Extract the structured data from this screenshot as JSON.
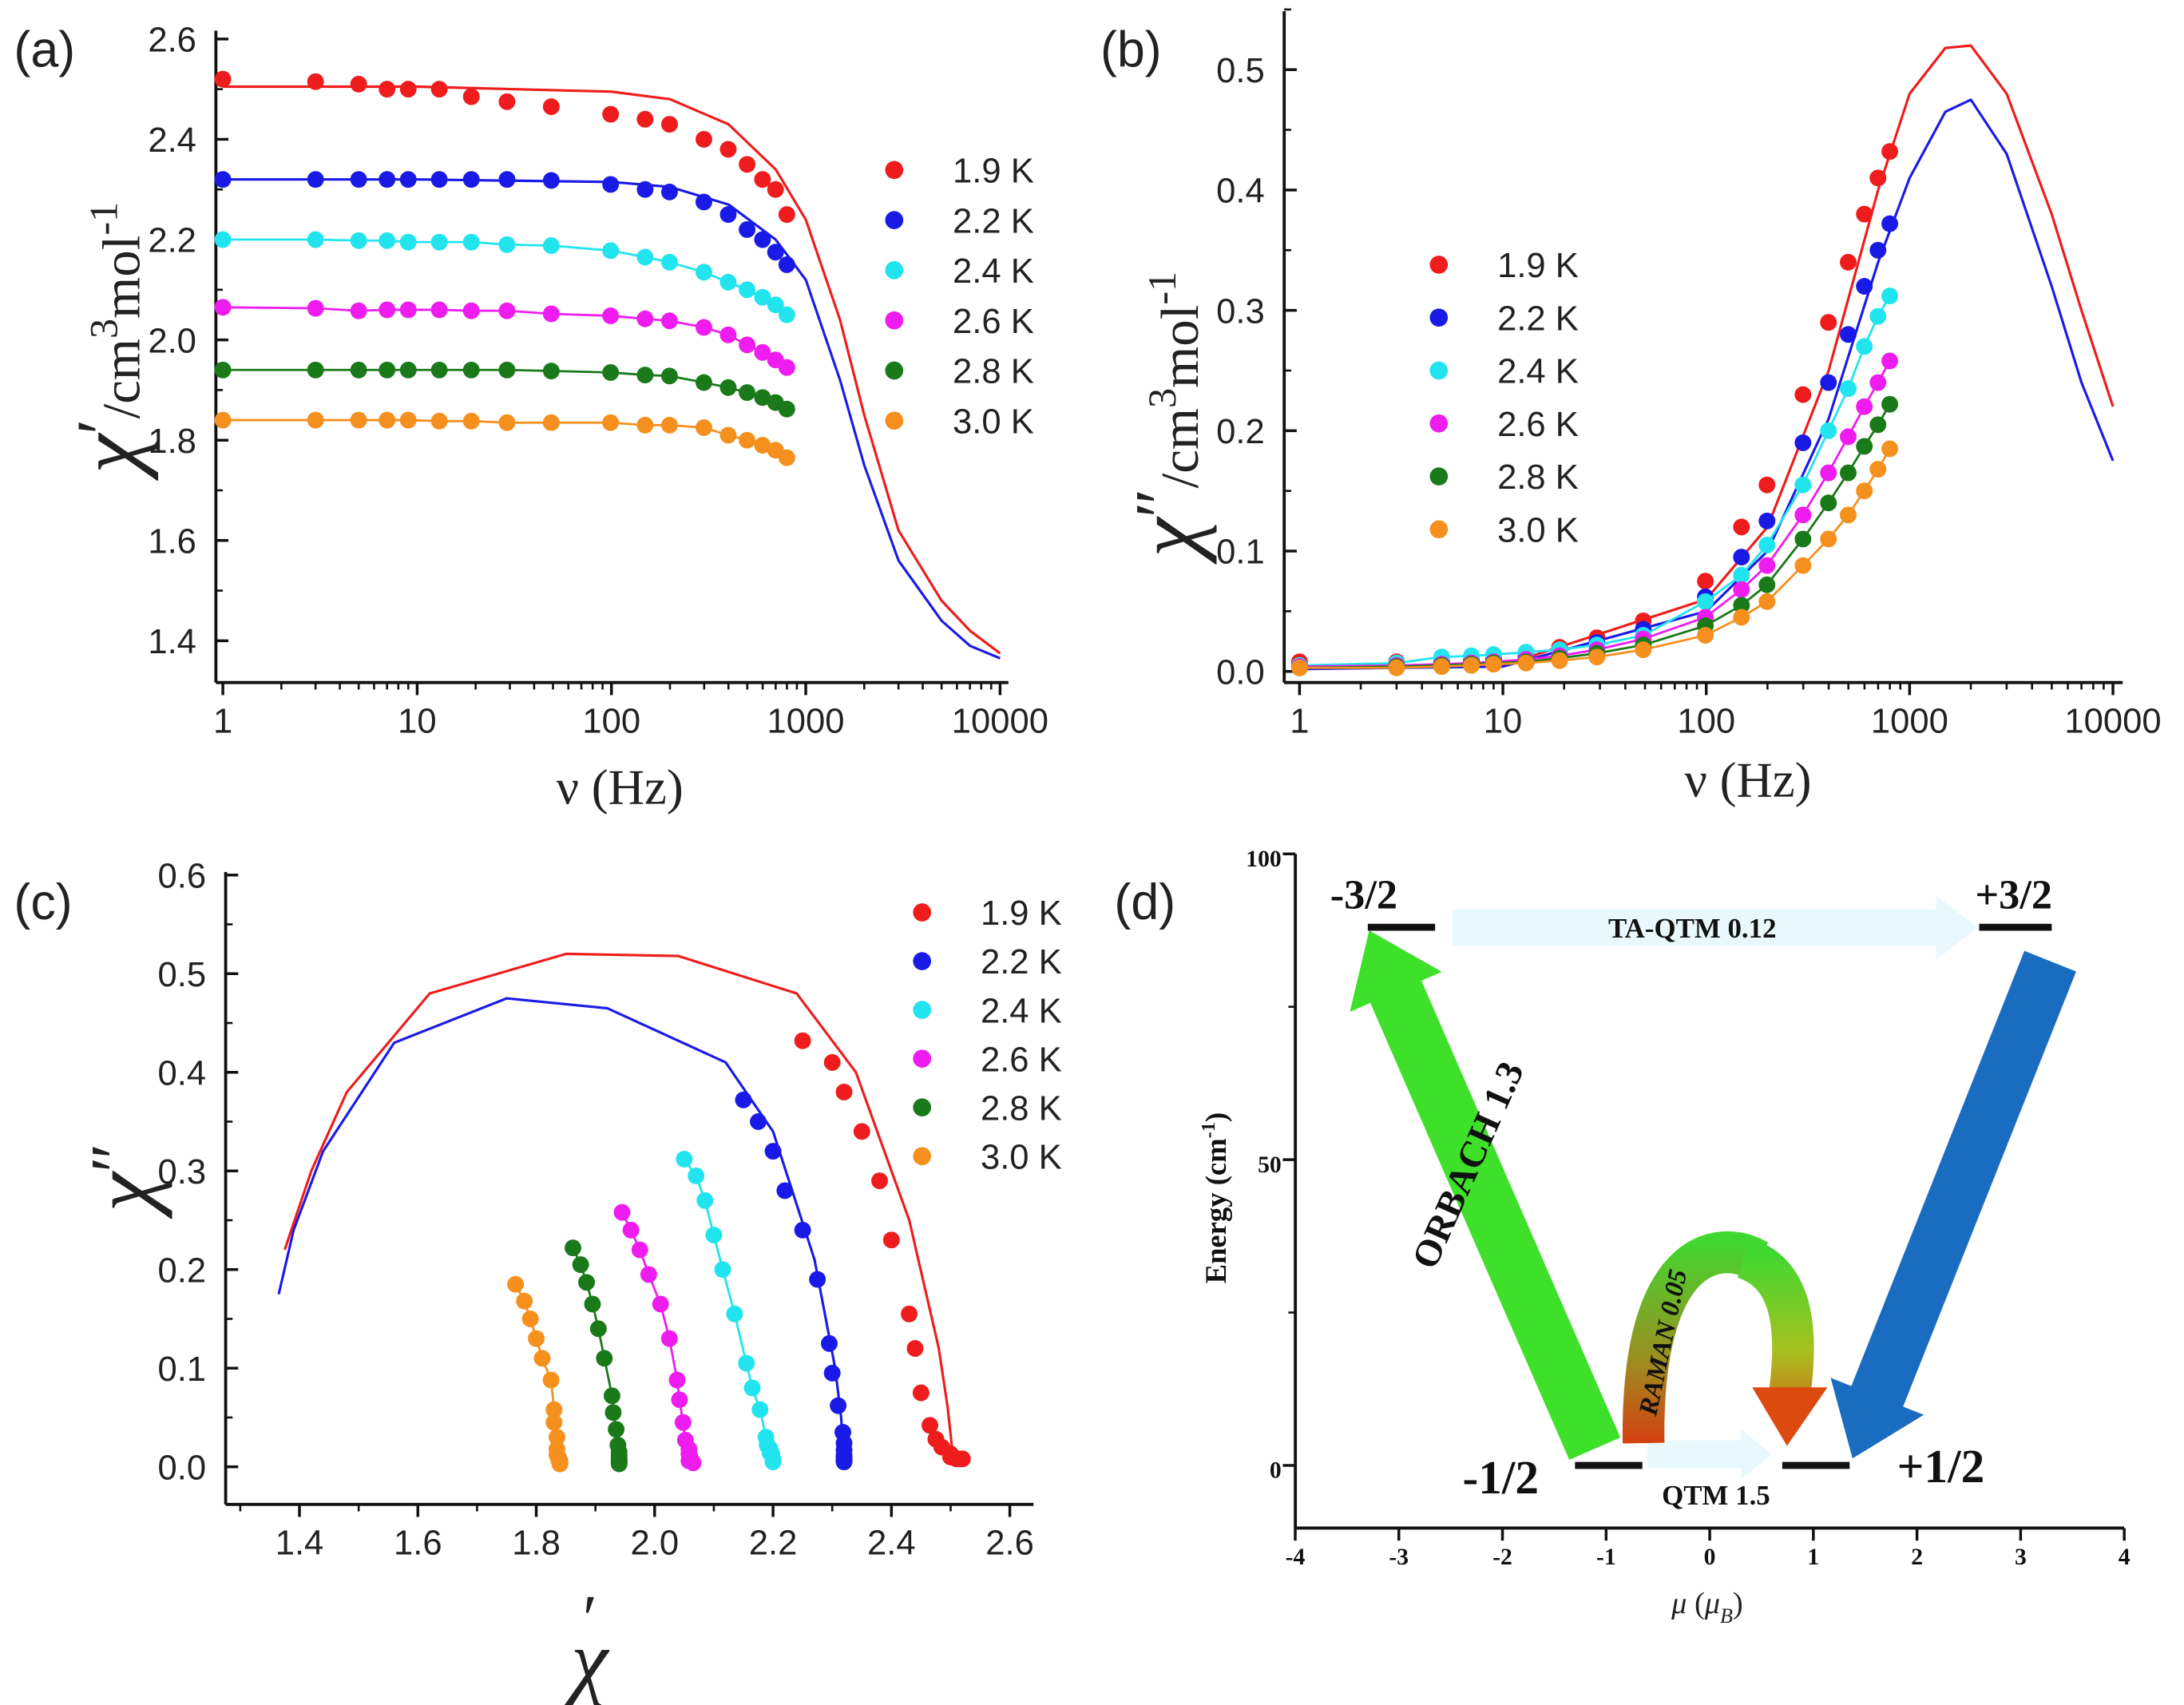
{
  "panel_labels": [
    "(a)",
    "(b)",
    "(c)",
    "(d)"
  ],
  "chart_data": [
    {
      "id": "a",
      "type": "scatter",
      "xscale": "log",
      "xlabel": "ν (Hz)",
      "ylabel": {
        "symbol": "χ",
        "prime": "′",
        "unit": "/cm",
        "sup1": "3",
        "unit2": "mol",
        "sup2": "-1"
      },
      "xticks": [
        1,
        10,
        100,
        1000,
        10000
      ],
      "xtick_labels": [
        "1",
        "10",
        "100",
        "1000",
        "10000"
      ],
      "xlim": [
        0.9,
        10500
      ],
      "yticks": [
        1.4,
        1.6,
        1.8,
        2.0,
        2.2,
        2.4,
        2.6
      ],
      "ytick_labels": [
        "1.4",
        "1.6",
        "1.8",
        "2.0",
        "2.2",
        "2.4",
        "2.6"
      ],
      "ylim": [
        1.32,
        2.6
      ],
      "legend_placement": "right",
      "frequencies_hz": [
        1,
        3,
        5,
        7,
        9,
        13,
        19,
        29,
        49,
        99,
        149,
        199,
        299,
        399,
        499,
        599,
        699,
        799
      ],
      "series": [
        {
          "name": "1.9 K",
          "color": "#ee1c1c",
          "values": [
            2.52,
            2.515,
            2.51,
            2.5,
            2.5,
            2.5,
            2.485,
            2.475,
            2.465,
            2.45,
            2.44,
            2.43,
            2.4,
            2.38,
            2.35,
            2.32,
            2.3,
            2.25
          ]
        },
        {
          "name": "2.2 K",
          "color": "#1a1ae6",
          "values": [
            2.32,
            2.32,
            2.32,
            2.32,
            2.32,
            2.32,
            2.32,
            2.32,
            2.318,
            2.31,
            2.3,
            2.295,
            2.275,
            2.25,
            2.22,
            2.2,
            2.175,
            2.15
          ]
        },
        {
          "name": "2.4 K",
          "color": "#22e4ee",
          "values": [
            2.2,
            2.2,
            2.198,
            2.198,
            2.195,
            2.195,
            2.195,
            2.19,
            2.188,
            2.178,
            2.165,
            2.155,
            2.135,
            2.115,
            2.1,
            2.085,
            2.07,
            2.05
          ]
        },
        {
          "name": "2.6 K",
          "color": "#ee1cee",
          "values": [
            2.065,
            2.063,
            2.058,
            2.06,
            2.06,
            2.06,
            2.058,
            2.058,
            2.052,
            2.048,
            2.042,
            2.038,
            2.025,
            2.01,
            1.99,
            1.975,
            1.96,
            1.945
          ]
        },
        {
          "name": "2.8 K",
          "color": "#1a7a1a",
          "values": [
            1.94,
            1.94,
            1.94,
            1.94,
            1.94,
            1.94,
            1.94,
            1.94,
            1.938,
            1.935,
            1.93,
            1.928,
            1.915,
            1.905,
            1.895,
            1.885,
            1.875,
            1.862
          ]
        },
        {
          "name": "3.0 K",
          "color": "#f5901e",
          "values": [
            1.84,
            1.84,
            1.84,
            1.84,
            1.84,
            1.838,
            1.838,
            1.835,
            1.835,
            1.835,
            1.83,
            1.83,
            1.825,
            1.81,
            1.8,
            1.79,
            1.78,
            1.765
          ]
        }
      ],
      "fit_frequencies_hz": [
        1,
        10,
        100,
        200,
        400,
        700,
        1000,
        1500,
        2000,
        3000,
        5000,
        7000,
        10000
      ],
      "fits": [
        {
          "name": "1.9 K fit",
          "color": "#ee1c1c",
          "values": [
            2.505,
            2.505,
            2.495,
            2.48,
            2.43,
            2.34,
            2.24,
            2.04,
            1.85,
            1.62,
            1.48,
            1.42,
            1.375
          ]
        },
        {
          "name": "2.2 K fit",
          "color": "#1a1ae6",
          "values": [
            2.32,
            2.32,
            2.315,
            2.305,
            2.27,
            2.2,
            2.12,
            1.92,
            1.75,
            1.56,
            1.44,
            1.39,
            1.365
          ]
        }
      ]
    },
    {
      "id": "b",
      "type": "scatter",
      "xscale": "log",
      "xlabel": "ν (Hz)",
      "ylabel": {
        "symbol": "χ",
        "prime": "″",
        "unit": "/cm",
        "sup1": "3",
        "unit2": "mol",
        "sup2": "-1"
      },
      "xticks": [
        1,
        10,
        100,
        1000,
        10000
      ],
      "xtick_labels": [
        "1",
        "10",
        "100",
        "1000",
        "10000"
      ],
      "xlim": [
        0.9,
        10500
      ],
      "yticks": [
        0.0,
        0.1,
        0.2,
        0.3,
        0.4,
        0.5
      ],
      "ytick_labels": [
        "0.0",
        "0.1",
        "0.2",
        "0.3",
        "0.4",
        "0.5"
      ],
      "ylim": [
        -0.01,
        0.55
      ],
      "legend_placement": "left",
      "frequencies_hz": [
        1,
        3,
        5,
        7,
        9,
        13,
        19,
        29,
        49,
        99,
        149,
        199,
        299,
        399,
        499,
        599,
        699,
        799
      ],
      "series": [
        {
          "name": "1.9 K",
          "color": "#ee1c1c",
          "values": [
            0.008,
            0.008,
            0.008,
            0.01,
            0.01,
            0.013,
            0.02,
            0.028,
            0.042,
            0.075,
            0.12,
            0.155,
            0.23,
            0.29,
            0.34,
            0.38,
            0.41,
            0.432
          ]
        },
        {
          "name": "2.2 K",
          "color": "#1a1ae6",
          "values": [
            0.005,
            0.006,
            0.007,
            0.008,
            0.01,
            0.012,
            0.017,
            0.024,
            0.035,
            0.062,
            0.095,
            0.125,
            0.19,
            0.24,
            0.28,
            0.32,
            0.35,
            0.372
          ]
        },
        {
          "name": "2.4 K",
          "color": "#22e4ee",
          "values": [
            0.005,
            0.007,
            0.012,
            0.013,
            0.014,
            0.016,
            0.018,
            0.022,
            0.03,
            0.058,
            0.08,
            0.105,
            0.155,
            0.2,
            0.235,
            0.27,
            0.295,
            0.312
          ]
        },
        {
          "name": "2.6 K",
          "color": "#ee1cee",
          "values": [
            0.004,
            0.005,
            0.006,
            0.007,
            0.008,
            0.01,
            0.013,
            0.018,
            0.027,
            0.045,
            0.068,
            0.088,
            0.13,
            0.165,
            0.195,
            0.22,
            0.24,
            0.258
          ]
        },
        {
          "name": "2.8 K",
          "color": "#1a7a1a",
          "values": [
            0.003,
            0.004,
            0.005,
            0.006,
            0.007,
            0.008,
            0.011,
            0.015,
            0.022,
            0.038,
            0.055,
            0.072,
            0.11,
            0.14,
            0.165,
            0.187,
            0.205,
            0.222
          ]
        },
        {
          "name": "3.0 K",
          "color": "#f5901e",
          "values": [
            0.003,
            0.003,
            0.004,
            0.005,
            0.006,
            0.007,
            0.009,
            0.012,
            0.018,
            0.03,
            0.045,
            0.058,
            0.088,
            0.11,
            0.13,
            0.15,
            0.168,
            0.185
          ]
        }
      ],
      "fit_frequencies_hz": [
        1,
        10,
        100,
        200,
        400,
        700,
        1000,
        1500,
        2000,
        3000,
        5000,
        7000,
        10000
      ],
      "fits": [
        {
          "name": "1.9 K fit",
          "color": "#ee1c1c",
          "values": [
            0.002,
            0.005,
            0.06,
            0.12,
            0.25,
            0.4,
            0.48,
            0.518,
            0.52,
            0.48,
            0.38,
            0.3,
            0.22
          ]
        },
        {
          "name": "2.2 K fit",
          "color": "#1a1ae6",
          "values": [
            0.002,
            0.004,
            0.05,
            0.1,
            0.21,
            0.34,
            0.41,
            0.465,
            0.475,
            0.43,
            0.32,
            0.24,
            0.175
          ]
        }
      ]
    },
    {
      "id": "c",
      "type": "scatter",
      "note": "Cole-Cole plot: x = chi' values of panel a, y = chi'' values of panel b, same series",
      "xlabel": {
        "symbol": "χ",
        "prime": "′"
      },
      "ylabel": {
        "symbol": "χ",
        "prime": "″"
      },
      "xticks": [
        1.4,
        1.6,
        1.8,
        2.0,
        2.2,
        2.4,
        2.6
      ],
      "xtick_labels": [
        "1.4",
        "1.6",
        "1.8",
        "2.0",
        "2.2",
        "2.4",
        "2.6"
      ],
      "xlim": [
        1.3,
        2.64
      ],
      "yticks": [
        0.0,
        0.1,
        0.2,
        0.3,
        0.4,
        0.5,
        0.6
      ],
      "ytick_labels": [
        "0.0",
        "0.1",
        "0.2",
        "0.3",
        "0.4",
        "0.5",
        "0.6"
      ],
      "ylim": [
        -0.04,
        0.6
      ],
      "legend_placement": "top-right",
      "series_names": [
        "1.9 K",
        "2.2 K",
        "2.4 K",
        "2.6 K",
        "2.8 K",
        "3.0 K"
      ]
    },
    {
      "id": "d",
      "type": "diagram",
      "xlabel": {
        "symbol": "μ",
        "open": " (",
        "sub_symbol": "μ",
        "sub": "B",
        "close": ")"
      },
      "ylabel": {
        "text": "Energy (cm",
        "sup": "-1",
        "close": ")"
      },
      "xticks": [
        -4,
        -3,
        -2,
        -1,
        0,
        1,
        2,
        3,
        4
      ],
      "xtick_labels": [
        "-4",
        "-3",
        "-2",
        "-1",
        "0",
        "1",
        "2",
        "3",
        "4"
      ],
      "xlim": [
        -4,
        4
      ],
      "yticks": [
        0,
        50,
        100
      ],
      "ytick_labels": [
        "0",
        "50",
        "100"
      ],
      "ylim": [
        -10,
        100
      ],
      "levels": [
        {
          "label": "-3/2",
          "mu": -3,
          "energy": 88
        },
        {
          "label": "+3/2",
          "mu": 3,
          "energy": 88
        },
        {
          "label": "-1/2",
          "mu": -1,
          "energy": 0
        },
        {
          "label": "+1/2",
          "mu": 1,
          "energy": 0
        }
      ],
      "transitions": [
        {
          "label": "TA-QTM 0.12",
          "from": "-3/2",
          "to": "+3/2"
        },
        {
          "label": "ORBACH 1.3",
          "from": "-1/2",
          "to": "-3/2"
        },
        {
          "label": "",
          "from": "+3/2",
          "to": "+1/2"
        },
        {
          "label": "RAMAN 0.05",
          "from": "-1/2",
          "to": "+1/2"
        },
        {
          "label": "QTM 1.5",
          "from": "-1/2",
          "to": "+1/2"
        }
      ]
    }
  ]
}
